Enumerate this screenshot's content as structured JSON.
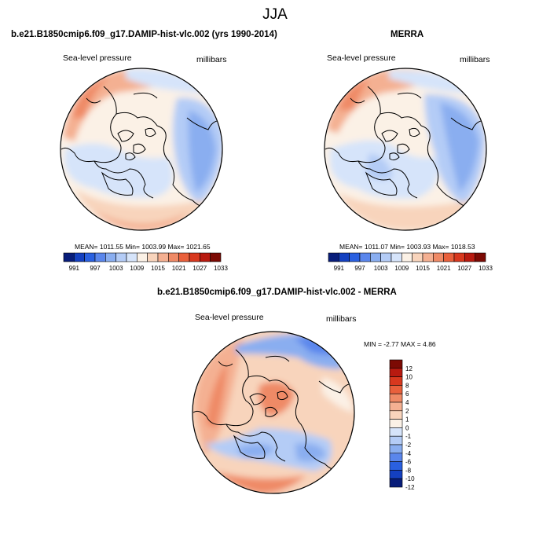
{
  "title": "JJA",
  "colors": {
    "palette_abs": [
      "#081d7a",
      "#1440c0",
      "#2a60e0",
      "#5a86ec",
      "#8aaef0",
      "#b4ccf6",
      "#d6e4fa",
      "#fbf1e6",
      "#f8d4bc",
      "#f4b092",
      "#ef8a66",
      "#e9603c",
      "#d8381e",
      "#b81a10",
      "#7c0a04"
    ],
    "palette_diff": [
      "#7c0a04",
      "#b81a10",
      "#d8381e",
      "#e9603c",
      "#ef8a66",
      "#f4b092",
      "#f8d4bc",
      "#fbf1e6",
      "#d6e4fa",
      "#b4ccf6",
      "#8aaef0",
      "#5a86ec",
      "#2a60e0",
      "#1440c0",
      "#081d7a"
    ]
  },
  "chart_data": [
    {
      "type": "heatmap",
      "projection": "north-polar-stereographic",
      "title": "b.e21.B1850cmip6.f09_g17.DAMIP-hist-vlc.002 (yrs 1990-2014)",
      "variable": "Sea-level pressure",
      "units": "millibars",
      "stats": {
        "mean": 1011.55,
        "min": 1003.99,
        "max": 1021.65
      },
      "stats_text": "MEAN= 1011.55  Min= 1003.99  Max= 1021.65",
      "colorbar_labels": [
        "991",
        "997",
        "1003",
        "1009",
        "1015",
        "1021",
        "1027",
        "1033"
      ]
    },
    {
      "type": "heatmap",
      "projection": "north-polar-stereographic",
      "title": "MERRA",
      "variable": "Sea-level pressure",
      "units": "millibars",
      "stats": {
        "mean": 1011.07,
        "min": 1003.93,
        "max": 1018.53
      },
      "stats_text": "MEAN= 1011.07  Min= 1003.93  Max= 1018.53",
      "colorbar_labels": [
        "991",
        "997",
        "1003",
        "1009",
        "1015",
        "1021",
        "1027",
        "1033"
      ]
    },
    {
      "type": "heatmap",
      "projection": "north-polar-stereographic",
      "title": "b.e21.B1850cmip6.f09_g17.DAMIP-hist-vlc.002 - MERRA",
      "variable": "Sea-level pressure",
      "units": "millibars",
      "stats": {
        "min": -2.77,
        "max": 4.86
      },
      "stats_text": "MIN =  -2.77 MAX =   4.86",
      "colorbar_labels": [
        "12",
        "10",
        "8",
        "6",
        "4",
        "2",
        "1",
        "0",
        "-1",
        "-2",
        "-4",
        "-6",
        "-8",
        "-10",
        "-12"
      ]
    }
  ]
}
